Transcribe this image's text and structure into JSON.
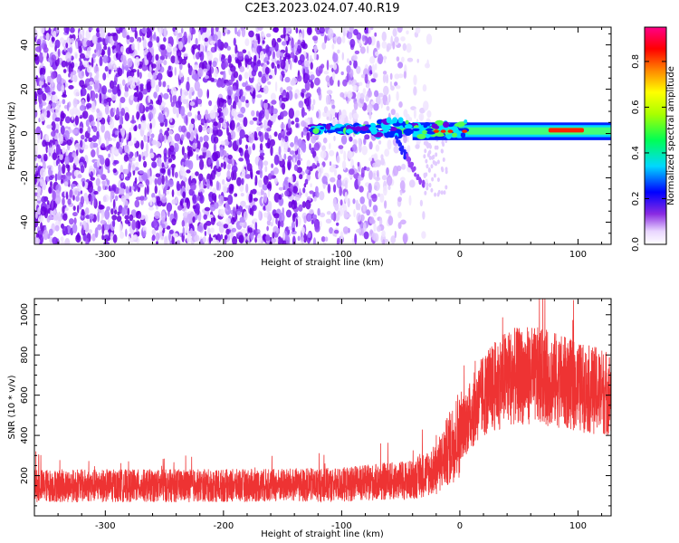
{
  "title": "C2E3.2023.024.07.40.R19",
  "colorbar": {
    "label": "Normalized spectral amplitude",
    "ticks": [
      "0.0",
      "0.2",
      "0.4",
      "0.6",
      "0.8"
    ],
    "range": [
      0,
      0.95
    ]
  },
  "chart_data": [
    {
      "type": "heatmap",
      "xlabel": "Height of straight line (km)",
      "ylabel": "Frequency (Hz)",
      "xlim": [
        -360,
        128
      ],
      "ylim": [
        -50,
        48
      ],
      "xticks": [
        "-300",
        "-200",
        "-100",
        "0",
        "100"
      ],
      "yticks": [
        "-40",
        "-20",
        "0",
        "20",
        "40"
      ],
      "bands": [
        {
          "x": [
            -125,
            -40
          ],
          "y_center": 2,
          "amplitude": 0.45
        },
        {
          "x": [
            -40,
            128
          ],
          "y_center": 1,
          "amplitude": 0.4
        },
        {
          "x": [
            75,
            105
          ],
          "y_center": 1.5,
          "amplitude": 0.85
        }
      ]
    },
    {
      "type": "line",
      "xlabel": "Height of straight line (km)",
      "ylabel": "SNR (10 * v/v)",
      "xlim": [
        -360,
        128
      ],
      "ylim": [
        0,
        1080
      ],
      "xticks": [
        "-300",
        "-200",
        "-100",
        "0",
        "100"
      ],
      "yticks": [
        "200",
        "400",
        "600",
        "800",
        "1000"
      ],
      "series": [
        {
          "color": "#ee3333",
          "trend_x": [
            -360,
            -200,
            -100,
            -40,
            -20,
            0,
            20,
            40,
            60,
            80,
            100,
            128
          ],
          "trend_y": [
            150,
            150,
            155,
            180,
            230,
            420,
            600,
            690,
            700,
            680,
            640,
            610
          ]
        }
      ]
    }
  ]
}
